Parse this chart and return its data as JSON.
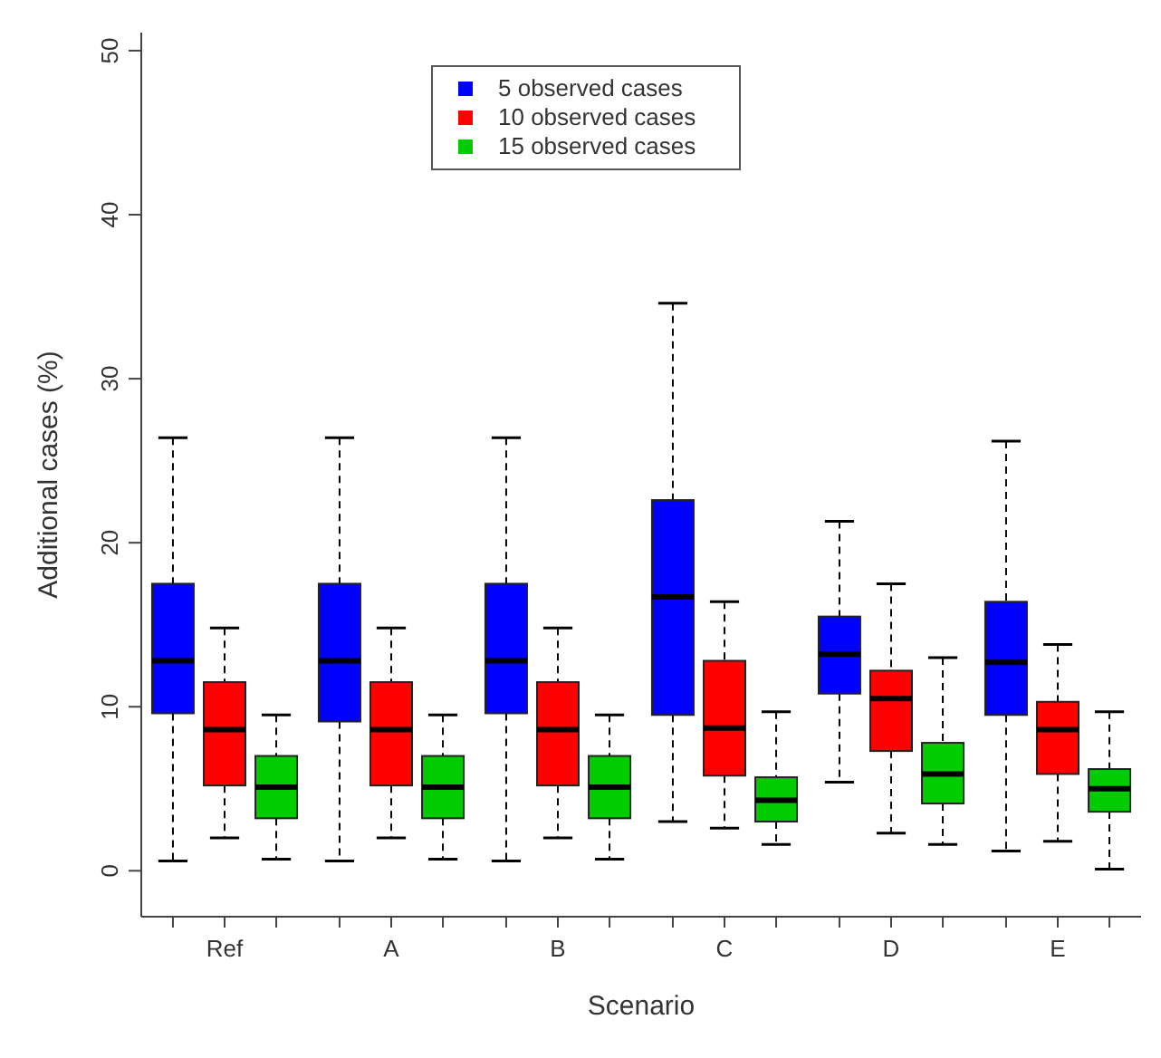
{
  "chart_data": {
    "type": "box",
    "xlabel": "Scenario",
    "ylabel": "Additional cases (%)",
    "categories": [
      "Ref",
      "A",
      "B",
      "C",
      "D",
      "E"
    ],
    "ylim": [
      -2.8,
      51.1
    ],
    "yticks": [
      0,
      10,
      20,
      30,
      40,
      50
    ],
    "legend": "top",
    "series": [
      {
        "name": "5 observed cases",
        "color": "#0000ff",
        "boxes": [
          {
            "low": 0.6,
            "q1": 9.6,
            "median": 12.8,
            "q3": 17.5,
            "high": 26.4
          },
          {
            "low": 0.6,
            "q1": 9.1,
            "median": 12.8,
            "q3": 17.5,
            "high": 26.4
          },
          {
            "low": 0.6,
            "q1": 9.6,
            "median": 12.8,
            "q3": 17.5,
            "high": 26.4
          },
          {
            "low": 3.0,
            "q1": 9.5,
            "median": 16.7,
            "q3": 22.6,
            "high": 34.6
          },
          {
            "low": 5.4,
            "q1": 10.8,
            "median": 13.2,
            "q3": 15.5,
            "high": 21.3
          },
          {
            "low": 1.2,
            "q1": 9.5,
            "median": 12.7,
            "q3": 16.4,
            "high": 26.2
          }
        ]
      },
      {
        "name": "10 observed cases",
        "color": "#ff0000",
        "boxes": [
          {
            "low": 2.0,
            "q1": 5.2,
            "median": 8.6,
            "q3": 11.5,
            "high": 14.8
          },
          {
            "low": 2.0,
            "q1": 5.2,
            "median": 8.6,
            "q3": 11.5,
            "high": 14.8
          },
          {
            "low": 2.0,
            "q1": 5.2,
            "median": 8.6,
            "q3": 11.5,
            "high": 14.8
          },
          {
            "low": 2.6,
            "q1": 5.8,
            "median": 8.7,
            "q3": 12.8,
            "high": 16.4
          },
          {
            "low": 2.3,
            "q1": 7.3,
            "median": 10.5,
            "q3": 12.2,
            "high": 17.5
          },
          {
            "low": 1.8,
            "q1": 5.9,
            "median": 8.6,
            "q3": 10.3,
            "high": 13.8
          }
        ]
      },
      {
        "name": "15 observed cases",
        "color": "#00cc00",
        "boxes": [
          {
            "low": 0.7,
            "q1": 3.2,
            "median": 5.1,
            "q3": 7.0,
            "high": 9.5
          },
          {
            "low": 0.7,
            "q1": 3.2,
            "median": 5.1,
            "q3": 7.0,
            "high": 9.5
          },
          {
            "low": 0.7,
            "q1": 3.2,
            "median": 5.1,
            "q3": 7.0,
            "high": 9.5
          },
          {
            "low": 1.6,
            "q1": 3.0,
            "median": 4.3,
            "q3": 5.7,
            "high": 9.7
          },
          {
            "low": 1.6,
            "q1": 4.1,
            "median": 5.9,
            "q3": 7.8,
            "high": 13.0
          },
          {
            "low": 0.1,
            "q1": 3.6,
            "median": 5.0,
            "q3": 6.2,
            "high": 9.7
          }
        ]
      }
    ]
  }
}
